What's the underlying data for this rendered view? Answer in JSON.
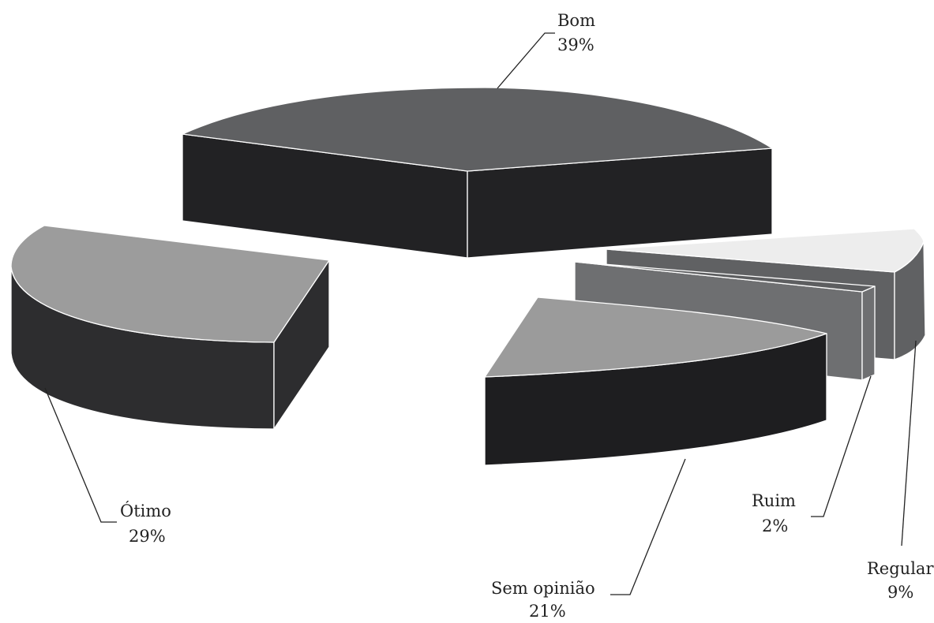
{
  "chart_data": {
    "type": "pie",
    "title": "",
    "legend": "none",
    "style": "3d-exploded",
    "slices": [
      {
        "name": "Bom",
        "label": "39%",
        "value": 39,
        "top_color": "#5f6062",
        "side_color": "#222224"
      },
      {
        "name": "Regular",
        "label": "9%",
        "value": 9,
        "top_color": "#ededed",
        "side_color": "#606163"
      },
      {
        "name": "Ruim",
        "label": "2%",
        "value": 2,
        "top_color": "#5d5e60",
        "side_color": "#6e6f71"
      },
      {
        "name": "Sem opinião",
        "label": "21%",
        "value": 21,
        "top_color": "#9b9b9b",
        "side_color": "#1e1e20"
      },
      {
        "name": "Ótimo",
        "label": "29%",
        "value": 29,
        "top_color": "#9c9c9c",
        "side_color": "#2d2d2f"
      }
    ]
  }
}
